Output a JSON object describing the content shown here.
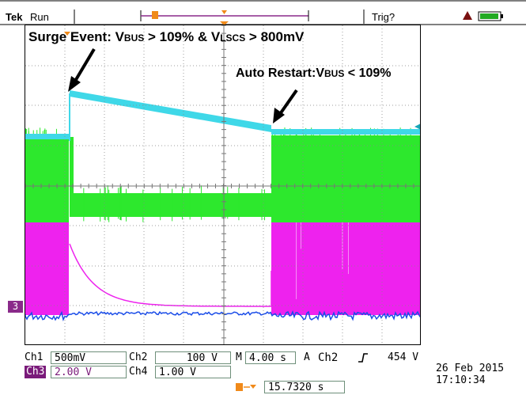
{
  "header": {
    "brand": "Tek",
    "status": "Run",
    "trigger_status": "Trig?"
  },
  "annotations": {
    "surge_prefix": "Surge Event: V",
    "surge_sub1": "BUS",
    "surge_mid": " > 109% & V",
    "surge_sub2": "LSCS",
    "surge_suffix": " > 800mV",
    "restart_prefix": "Auto Restart:V",
    "restart_sub": "BUS",
    "restart_suffix": " < 109%"
  },
  "ch3_marker": "3",
  "readout": {
    "ch1_label": "Ch1",
    "ch1_scale": "500mV",
    "ch2_label": "Ch2",
    "ch2_scale": "100 V",
    "ch3_label": "Ch3",
    "ch3_scale": "2.00 V",
    "ch4_label": "Ch4",
    "ch4_scale": "1.00 V",
    "timebase_label": "M",
    "timebase": "4.00 s",
    "trigger_mode": "A",
    "trigger_channel": "Ch2",
    "trigger_level": "454 V",
    "trigger_position": "15.7320 s",
    "date": "26 Feb  2015",
    "time": "17:10:34"
  },
  "colors": {
    "ch1": "#3fd8e8",
    "ch2": "#2de82d",
    "ch3": "#ee22ee",
    "ch4": "#1b4de8",
    "trigger": "#f08a1a",
    "purple_bar": "#8a2a8a"
  }
}
